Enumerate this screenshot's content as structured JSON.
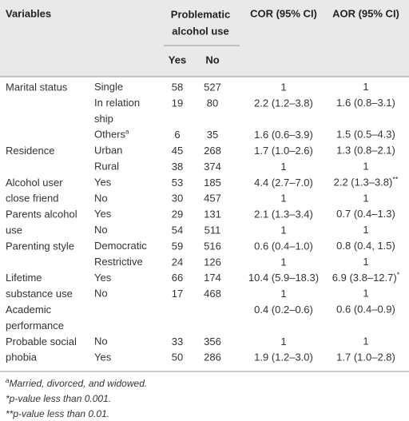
{
  "header": {
    "variables": "Variables",
    "outcome": [
      "Problematic",
      "alcohol use"
    ],
    "yes": "Yes",
    "no": "No",
    "cor": "COR (95% CI)",
    "aor": "AOR (95% CI)"
  },
  "rows": [
    {
      "variable": [
        "Marital status"
      ],
      "level": [
        "Single"
      ],
      "yes": 58,
      "no": 527,
      "cor": "1",
      "aor": "1"
    },
    {
      "level": [
        "In relation",
        "ship"
      ],
      "yes": 19,
      "no": 80,
      "cor": "2.2 (1.2–3.8)",
      "aor": "1.6 (0.8–3.1)"
    },
    {
      "level": [
        "Others"
      ],
      "level_note": "a",
      "yes": 6,
      "no": 35,
      "cor": "1.6 (0.6–3.9)",
      "aor": "1.5 (0.5–4.3)"
    },
    {
      "variable": [
        "Residence"
      ],
      "level": [
        "Urban"
      ],
      "yes": 45,
      "no": 268,
      "cor": "1.7 (1.0–2.6)",
      "aor": "1.3 (0.8–2.1)"
    },
    {
      "level": [
        "Rural"
      ],
      "yes": 38,
      "no": 374,
      "cor": "1",
      "aor": "1"
    },
    {
      "variable": [
        "Alcohol user",
        "close friend"
      ],
      "level": [
        "Yes"
      ],
      "yes": 53,
      "no": 185,
      "cor": "4.4 (2.7–7.0)",
      "aor": "2.2 (1.3–3.8)",
      "aor_note": "**"
    },
    {
      "level": [
        "No"
      ],
      "yes": 30,
      "no": 457,
      "cor": "1",
      "aor": "1"
    },
    {
      "variable": [
        "Parents alcohol",
        "use"
      ],
      "level": [
        "Yes"
      ],
      "yes": 29,
      "no": 131,
      "cor": "2.1 (1.3–3.4)",
      "aor": "0.7 (0.4–1.3)"
    },
    {
      "level": [
        "No"
      ],
      "yes": 54,
      "no": 511,
      "cor": "1",
      "aor": "1"
    },
    {
      "variable": [
        "Parenting style"
      ],
      "level": [
        "Democratic"
      ],
      "yes": 59,
      "no": 516,
      "cor": "0.6 (0.4–1.0)",
      "aor": "0.8 (0.4, 1.5)"
    },
    {
      "level": [
        "Restrictive"
      ],
      "yes": 24,
      "no": 126,
      "cor": "1",
      "aor": "1"
    },
    {
      "variable": [
        "Lifetime",
        "substance use"
      ],
      "level": [
        "Yes"
      ],
      "yes": 66,
      "no": 174,
      "cor": "10.4 (5.9–18.3)",
      "aor": "6.9 (3.8–12.7)",
      "aor_note": "*"
    },
    {
      "level": [
        "No"
      ],
      "yes": 17,
      "no": 468,
      "cor": "1",
      "aor": "1"
    },
    {
      "variable": [
        "Academic",
        "performance"
      ],
      "cor": "0.4 (0.2–0.6)",
      "aor": "0.6 (0.4–0.9)"
    },
    {
      "variable": [
        "Probable social",
        "phobia"
      ],
      "level": [
        "No"
      ],
      "yes": 33,
      "no": 356,
      "cor": "1",
      "aor": "1"
    },
    {
      "level": [
        "Yes"
      ],
      "yes": 50,
      "no": 286,
      "cor": "1.9 (1.2–3.0)",
      "aor": "1.7 (1.0–2.8)"
    }
  ],
  "footnotes": [
    {
      "mark": "a",
      "text": "Married, divorced, and widowed."
    },
    {
      "text": "*p-value less than 0.001."
    },
    {
      "text": "**p-value less than 0.01."
    }
  ]
}
